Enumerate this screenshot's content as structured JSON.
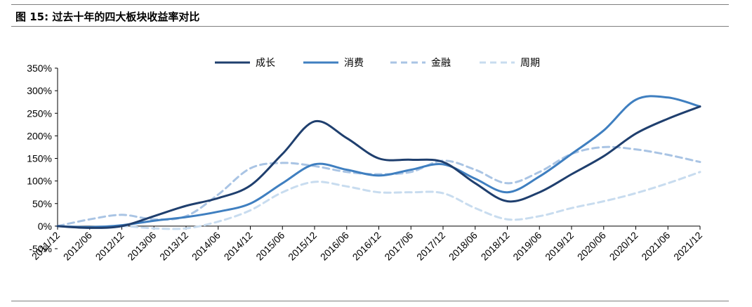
{
  "figure": {
    "title": "图 15:  过去十年的四大板块收益率对比"
  },
  "chart_data": {
    "type": "line",
    "title": "",
    "xlabel": "",
    "ylabel": "",
    "categories": [
      "2011/12",
      "2012/06",
      "2012/12",
      "2013/06",
      "2013/12",
      "2014/06",
      "2014/12",
      "2015/06",
      "2015/12",
      "2016/06",
      "2016/12",
      "2017/06",
      "2017/12",
      "2018/06",
      "2018/12",
      "2019/06",
      "2019/12",
      "2020/06",
      "2020/12",
      "2021/06",
      "2021/12"
    ],
    "ylim": [
      -50,
      350
    ],
    "yticks": [
      -50,
      0,
      50,
      100,
      150,
      200,
      250,
      300,
      350
    ],
    "ytick_labels": [
      "-50%",
      "0%",
      "50%",
      "100%",
      "150%",
      "200%",
      "250%",
      "300%",
      "350%"
    ],
    "legend_position": "top",
    "series": [
      {
        "name": "成长",
        "color": "#1f3f6e",
        "dash": "solid",
        "values": [
          0,
          -4,
          0,
          22,
          45,
          62,
          90,
          160,
          232,
          195,
          150,
          147,
          142,
          95,
          55,
          75,
          115,
          155,
          205,
          238,
          265
        ]
      },
      {
        "name": "消费",
        "color": "#3f7fc0",
        "dash": "solid",
        "values": [
          0,
          -2,
          2,
          12,
          20,
          32,
          50,
          95,
          137,
          125,
          112,
          125,
          137,
          105,
          75,
          110,
          160,
          212,
          280,
          285,
          265
        ]
      },
      {
        "name": "金融",
        "color": "#a9c4e4",
        "dash": "dashed",
        "values": [
          0,
          15,
          25,
          15,
          22,
          70,
          128,
          140,
          133,
          120,
          115,
          120,
          145,
          125,
          95,
          120,
          160,
          175,
          170,
          158,
          142
        ]
      },
      {
        "name": "周期",
        "color": "#c8dcef",
        "dash": "dashed",
        "values": [
          0,
          -3,
          0,
          -5,
          -5,
          10,
          35,
          75,
          98,
          88,
          75,
          75,
          73,
          40,
          15,
          22,
          40,
          55,
          73,
          95,
          120
        ]
      }
    ]
  }
}
